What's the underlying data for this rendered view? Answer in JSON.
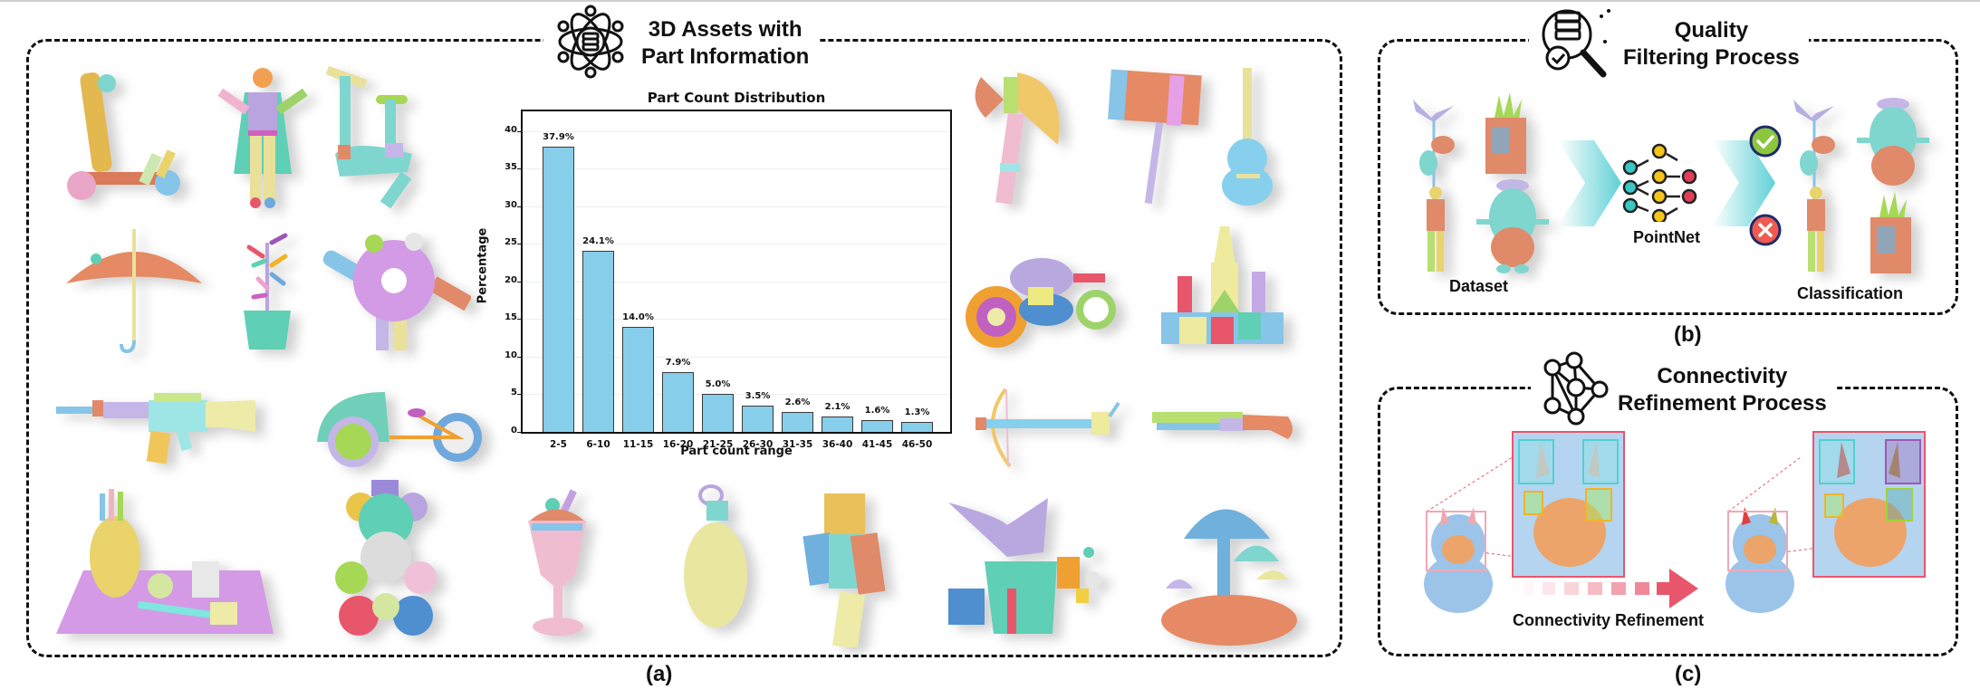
{
  "panels": {
    "a": {
      "title_line1": "3D Assets with",
      "title_line2": "Part Information",
      "caption": "(a)",
      "icon": "atom-database-icon",
      "objects": [
        "scooter",
        "superhero-figure",
        "exercise-bike",
        "umbrella",
        "potted-plant",
        "donut-character",
        "rifle",
        "tricycle-cart",
        "vase-on-mat",
        "teddy-bear-balloons",
        "ice-cream-glass",
        "grenade",
        "block-figure",
        "goblin-character",
        "battle-axe",
        "hammer",
        "guitar",
        "motorcycle",
        "castle",
        "crossbow",
        "shotgun",
        "mushrooms"
      ]
    },
    "b": {
      "title_line1": "Quality",
      "title_line2": "Filtering Process",
      "caption": "(b)",
      "icon": "magnifier-gear-icon",
      "dataset_label": "Dataset",
      "model_label": "PointNet",
      "result_label": "Classification",
      "accept_icon": "check-icon",
      "reject_icon": "x-icon",
      "colors": {
        "accept": "#8cc63f",
        "reject": "#f05a4f",
        "ring": "#1f2a6b",
        "arrow": "#5fd1d6"
      }
    },
    "c": {
      "title_line1": "Connectivity",
      "title_line2": "Refinement Process",
      "caption": "(c)",
      "icon": "neural-network-icon",
      "arrow_label": "Connectivity Refinement",
      "colors": {
        "arrow": "#e8566c",
        "zoom_box": "#e8566c",
        "cyan_box": "#4fd1d1",
        "yellow_box": "#f0b429",
        "purple_box": "#9b59b6",
        "green_box": "#a3d13f"
      }
    }
  },
  "chart_data": {
    "type": "bar",
    "title": "Part Count Distribution",
    "xlabel": "Part count range",
    "ylabel": "Percentage",
    "categories": [
      "2-5",
      "6-10",
      "11-15",
      "16-20",
      "21-25",
      "26-30",
      "31-35",
      "36-40",
      "41-45",
      "46-50"
    ],
    "values": [
      37.9,
      24.1,
      14.0,
      7.9,
      5.0,
      3.5,
      2.6,
      2.1,
      1.6,
      1.3
    ],
    "value_labels": [
      "37.9%",
      "24.1%",
      "14.0%",
      "7.9%",
      "5.0%",
      "3.5%",
      "2.6%",
      "2.1%",
      "1.6%",
      "1.3%"
    ],
    "yticks": [
      0,
      5,
      10,
      15,
      20,
      25,
      30,
      35,
      40
    ],
    "ylim": [
      0,
      42.6
    ],
    "grid": true,
    "bar_color": "#87ceeb"
  }
}
